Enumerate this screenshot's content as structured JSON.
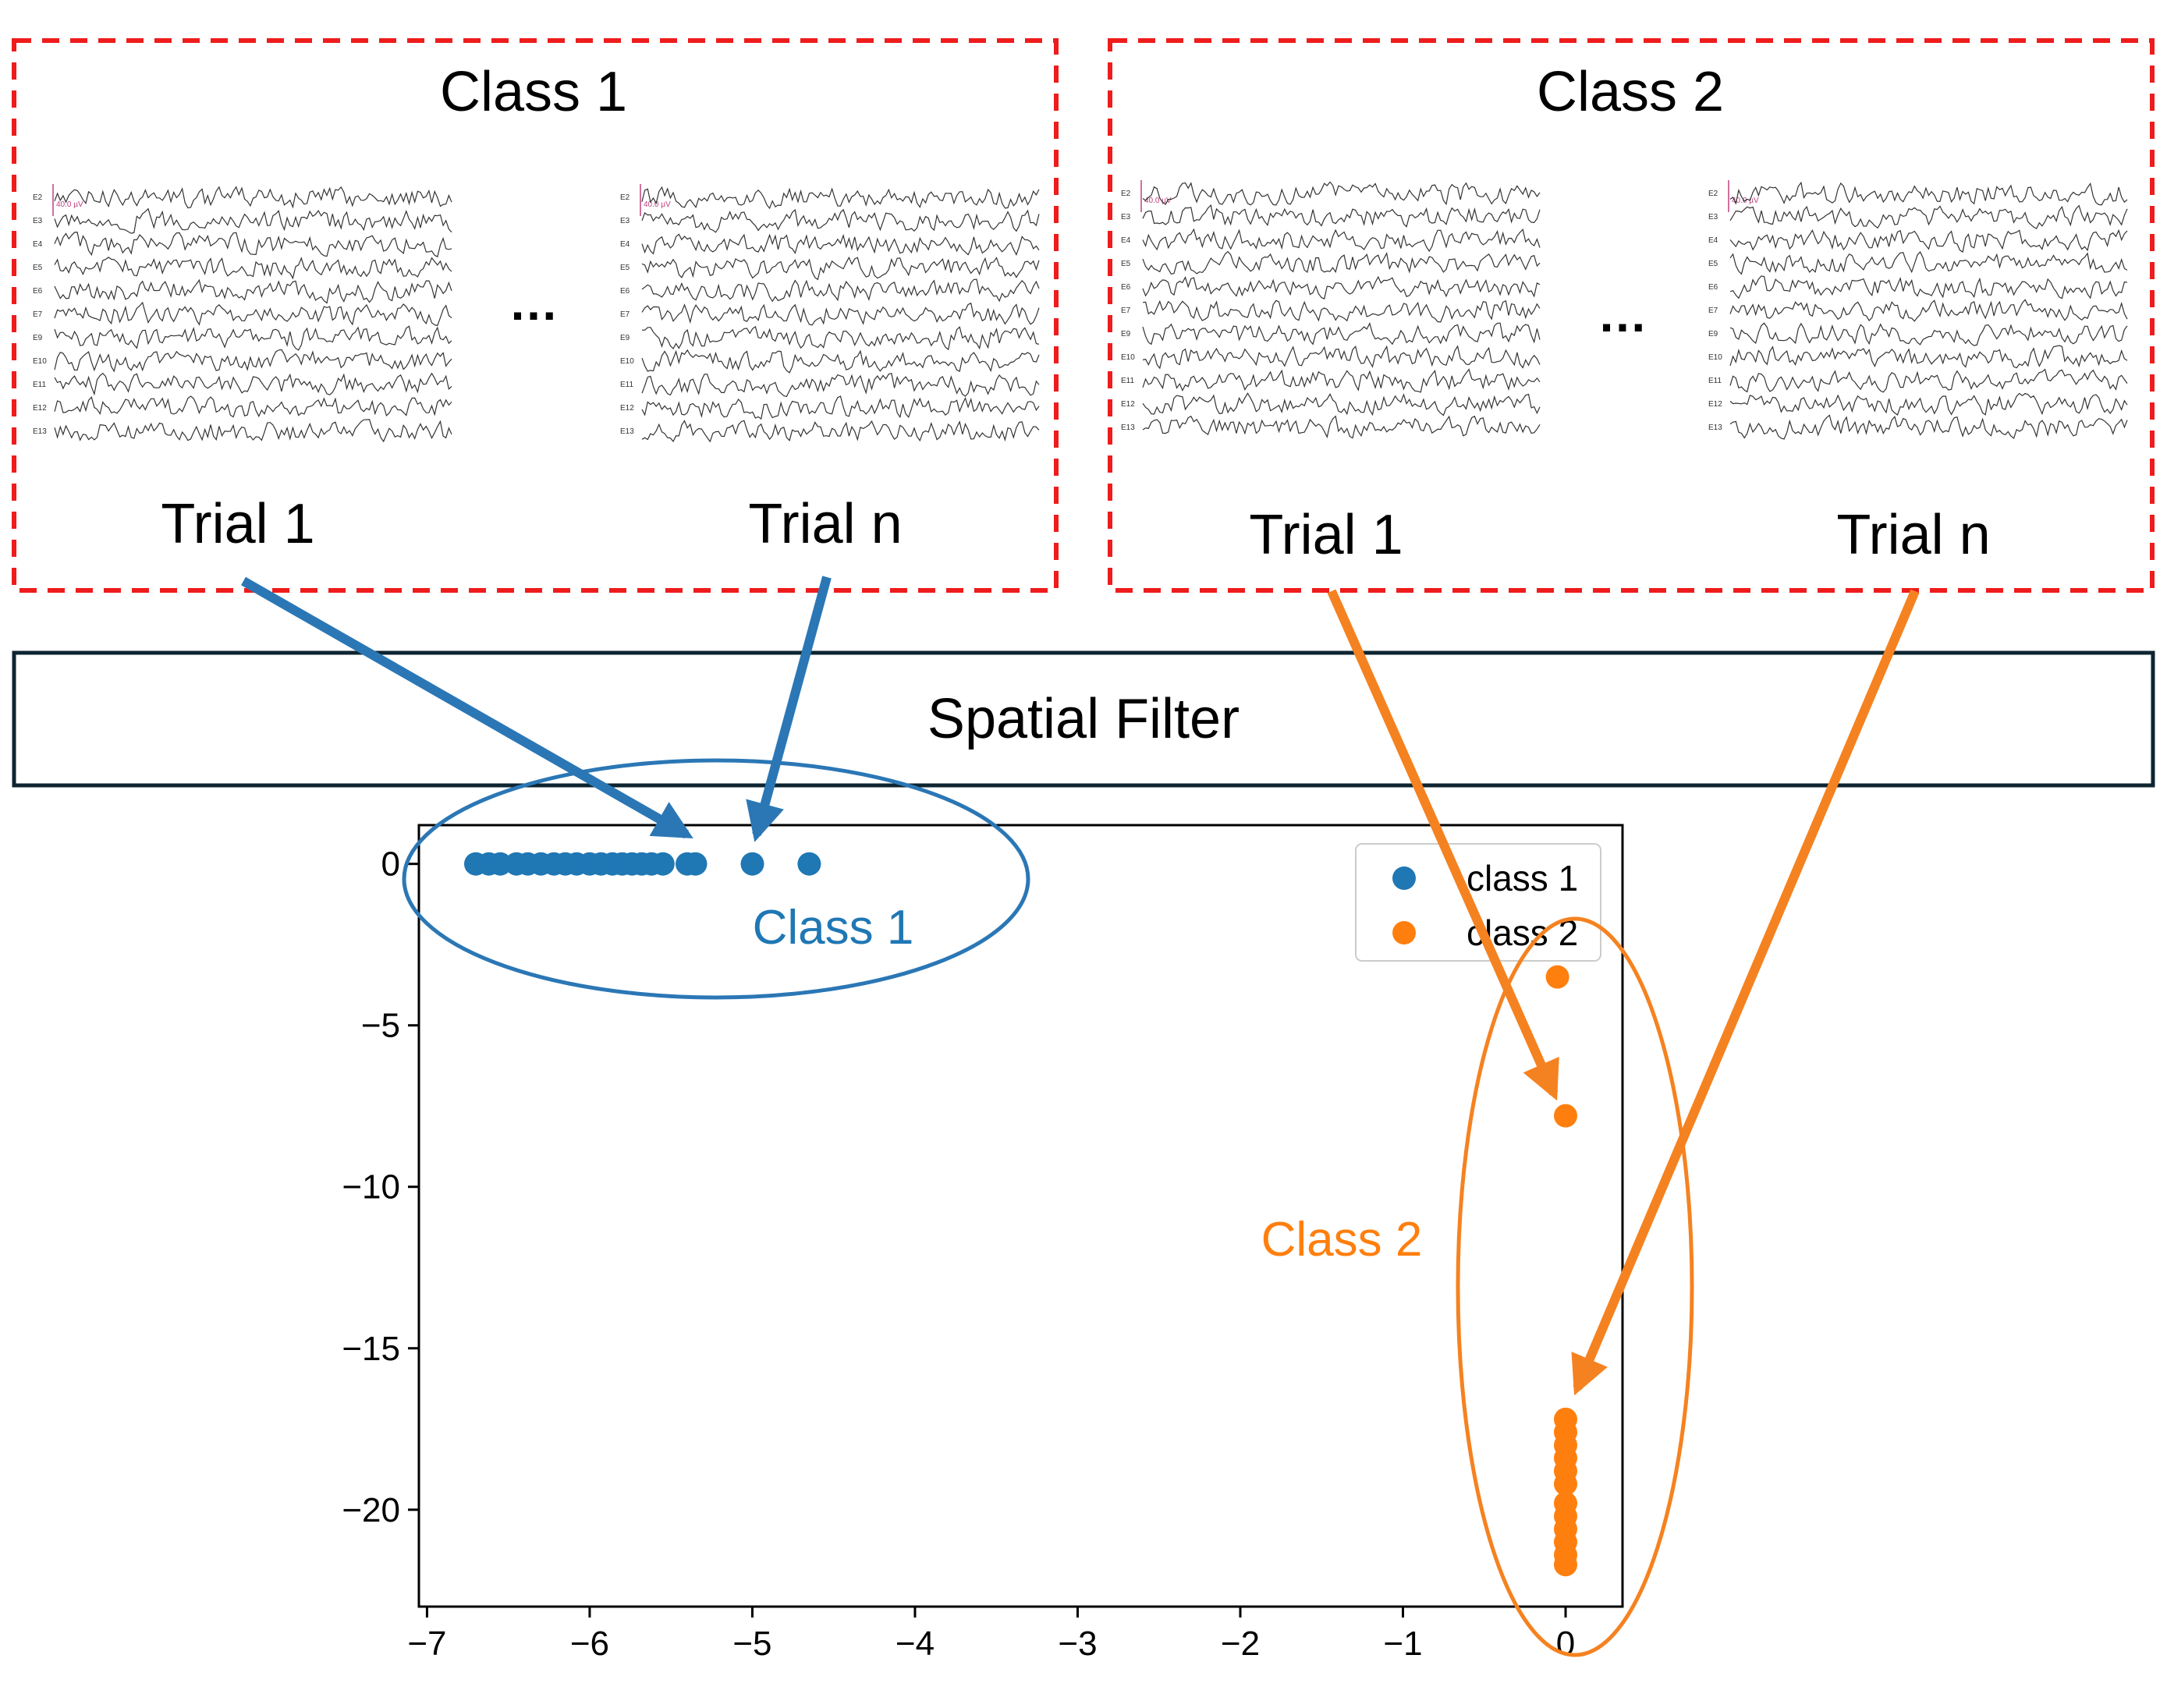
{
  "colors": {
    "class1": "#1f77b4",
    "class2": "#ff7f0e",
    "dashed_border": "#ee1c1c",
    "filter_border": "#0d2530",
    "arrow_class1": "#2b77b5",
    "arrow_class2": "#f58220"
  },
  "panels": [
    {
      "title": "Class 1",
      "ellipsis": "…",
      "trials": [
        {
          "label": "Trial 1",
          "scale": "40.0 µV"
        },
        {
          "label": "Trial n",
          "scale": "40.0 µV"
        }
      ]
    },
    {
      "title": "Class 2",
      "ellipsis": "…",
      "trials": [
        {
          "label": "Trial 1",
          "scale": "40.0 µV"
        },
        {
          "label": "Trial n",
          "scale": "40.0 µV"
        }
      ]
    }
  ],
  "channels": [
    "E2",
    "E3",
    "E4",
    "E5",
    "E6",
    "E7",
    "E9",
    "E10",
    "E11",
    "E12",
    "E13"
  ],
  "spatial_filter": {
    "label": "Spatial Filter"
  },
  "chart_data": {
    "type": "scatter",
    "title": "",
    "xlabel": "",
    "ylabel": "",
    "xlim": [
      -7.05,
      0.35
    ],
    "ylim": [
      -23,
      1.2
    ],
    "xticks": [
      -7,
      -6,
      -5,
      -4,
      -3,
      -2,
      -1,
      0
    ],
    "yticks": [
      0,
      -5,
      -10,
      -15,
      -20
    ],
    "xtick_labels": [
      "−7",
      "−6",
      "−5",
      "−4",
      "−3",
      "−2",
      "−1",
      "0"
    ],
    "ytick_labels": [
      "0",
      "−5",
      "−10",
      "−15",
      "−20"
    ],
    "grid": false,
    "legend": "top-right",
    "series": [
      {
        "name": "class 1",
        "color": "#1f77b4",
        "points": [
          [
            -6.7,
            0
          ],
          [
            -6.62,
            0
          ],
          [
            -6.55,
            0
          ],
          [
            -6.45,
            0
          ],
          [
            -6.38,
            0
          ],
          [
            -6.3,
            0
          ],
          [
            -6.22,
            0
          ],
          [
            -6.15,
            0
          ],
          [
            -6.08,
            0
          ],
          [
            -6.0,
            0
          ],
          [
            -5.93,
            0
          ],
          [
            -5.86,
            0
          ],
          [
            -5.8,
            0
          ],
          [
            -5.74,
            0
          ],
          [
            -5.68,
            0
          ],
          [
            -5.62,
            0
          ],
          [
            -5.55,
            0
          ],
          [
            -5.4,
            0
          ],
          [
            -5.35,
            0
          ],
          [
            -5.0,
            0
          ],
          [
            -4.65,
            0
          ]
        ]
      },
      {
        "name": "class 2",
        "color": "#ff7f0e",
        "points": [
          [
            -0.05,
            -3.5
          ],
          [
            0.0,
            -7.8
          ],
          [
            0.0,
            -17.2
          ],
          [
            0.0,
            -17.6
          ],
          [
            0.0,
            -18.0
          ],
          [
            0.0,
            -18.4
          ],
          [
            0.0,
            -18.8
          ],
          [
            0.0,
            -19.2
          ],
          [
            0.0,
            -19.8
          ],
          [
            0.0,
            -20.2
          ],
          [
            0.0,
            -20.6
          ],
          [
            0.0,
            -21.0
          ],
          [
            0.0,
            -21.4
          ],
          [
            0.0,
            -21.7
          ]
        ]
      }
    ]
  },
  "annotations": [
    {
      "text": "Class 1",
      "color": "#1f77b4"
    },
    {
      "text": "Class 2",
      "color": "#ff7f0e"
    }
  ]
}
